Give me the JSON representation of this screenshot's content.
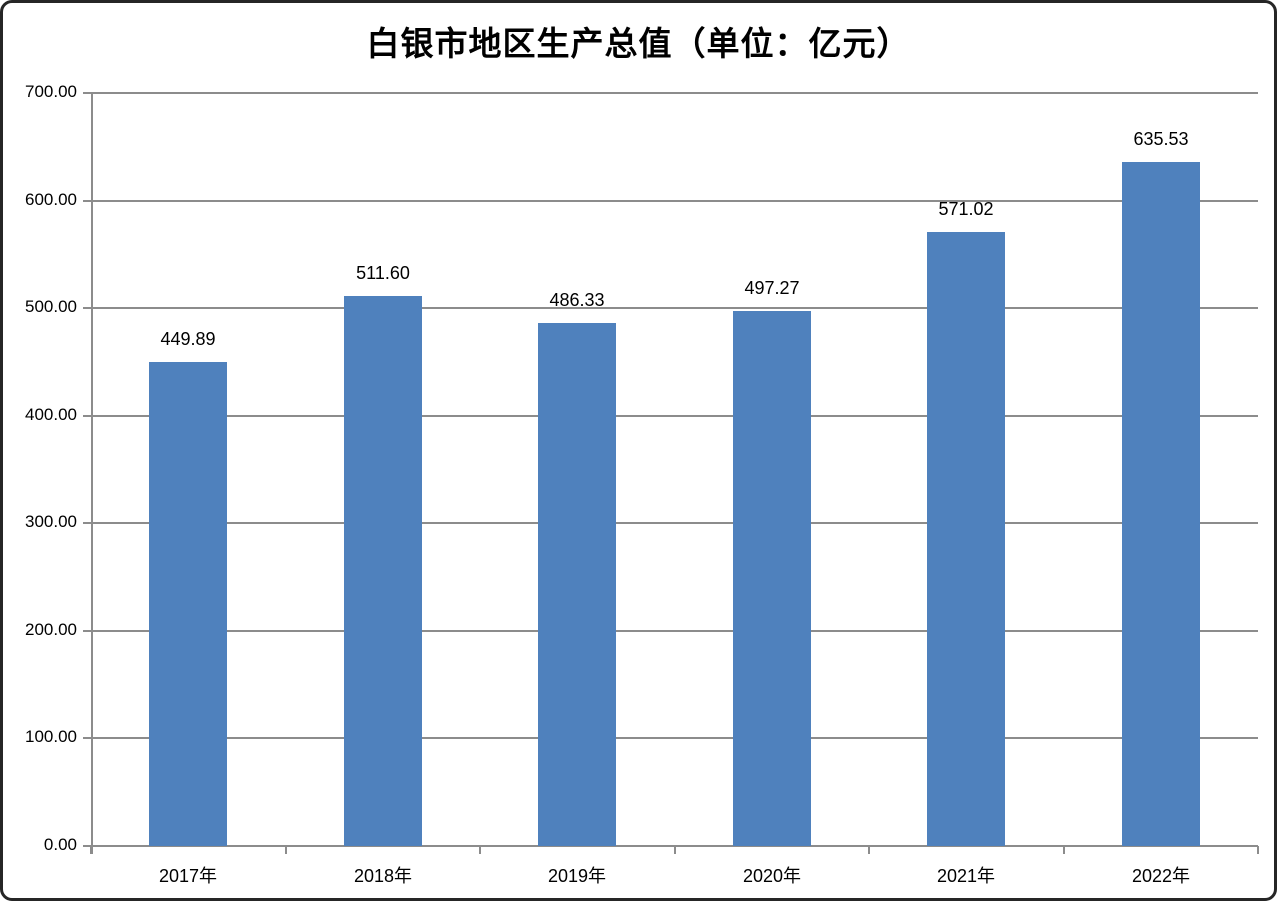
{
  "chart_data": {
    "type": "bar",
    "title": "白银市地区生产总值（单位：亿元）",
    "categories": [
      "2017年",
      "2018年",
      "2019年",
      "2020年",
      "2021年",
      "2022年"
    ],
    "values": [
      449.89,
      511.6,
      486.33,
      497.27,
      571.02,
      635.53
    ],
    "data_labels": [
      "449.89",
      "511.60",
      "486.33",
      "497.27",
      "571.02",
      "635.53"
    ],
    "xlabel": "",
    "ylabel": "",
    "ylim": [
      0,
      700
    ],
    "ytick_step": 100,
    "ytick_labels": [
      "0.00",
      "100.00",
      "200.00",
      "300.00",
      "400.00",
      "500.00",
      "600.00",
      "700.00"
    ],
    "grid": "horizontal",
    "legend_position": "none",
    "colors": {
      "bar_fill": "#4F81BD",
      "gridline": "#8C8C8C",
      "axis": "#8C8C8C",
      "text": "#000000",
      "frame_border": "#262626",
      "background": "#FFFFFF"
    }
  }
}
